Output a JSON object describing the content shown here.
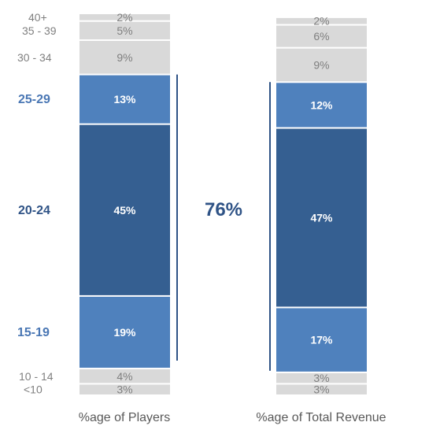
{
  "chart_data": {
    "type": "bar",
    "stacked": true,
    "orientation": "vertical",
    "categories": [
      "%age of Players",
      "%age of Total Revenue"
    ],
    "age_groups": [
      "<10",
      "10 - 14",
      "15-19",
      "20-24",
      "25-29",
      "30 - 34",
      "35 - 39",
      "40+"
    ],
    "series": [
      {
        "values": [
          3,
          3
        ],
        "labels": [
          "3%",
          "3%"
        ],
        "color": "#d9d9d9"
      },
      {
        "values": [
          4,
          3
        ],
        "labels": [
          "4%",
          "3%"
        ],
        "color": "#d9d9d9"
      },
      {
        "values": [
          19,
          17
        ],
        "labels": [
          "19%",
          "17%"
        ],
        "color": "#4f81bd"
      },
      {
        "values": [
          45,
          47
        ],
        "labels": [
          "45%",
          "47%"
        ],
        "color": "#355f91"
      },
      {
        "values": [
          13,
          12
        ],
        "labels": [
          "13%",
          "12%"
        ],
        "color": "#4f81bd"
      },
      {
        "values": [
          9,
          9
        ],
        "labels": [
          "9%",
          "9%"
        ],
        "color": "#d9d9d9"
      },
      {
        "values": [
          5,
          6
        ],
        "labels": [
          "5%",
          "6%"
        ],
        "color": "#d9d9d9"
      },
      {
        "values": [
          2,
          2
        ],
        "labels": [
          "2%",
          "2%"
        ],
        "color": "#d9d9d9"
      }
    ],
    "ylim": [
      0,
      100
    ],
    "annotation": "76%",
    "title": "",
    "xlabel": "",
    "ylabel": ""
  }
}
